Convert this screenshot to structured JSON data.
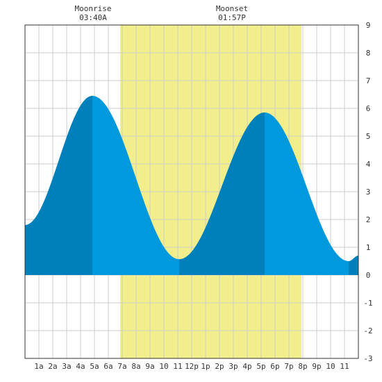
{
  "chart_data": {
    "type": "area",
    "title": "",
    "xlabel": "",
    "ylabel": "",
    "x_range_hours": [
      0,
      24
    ],
    "ylim": [
      -3,
      9
    ],
    "y_ticks": [
      9,
      8,
      7,
      6,
      5,
      4,
      3,
      2,
      1,
      0,
      -1,
      -2,
      -3
    ],
    "x_ticks": [
      {
        "hour": 1,
        "label": "1a"
      },
      {
        "hour": 2,
        "label": "2a"
      },
      {
        "hour": 3,
        "label": "3a"
      },
      {
        "hour": 4,
        "label": "4a"
      },
      {
        "hour": 5,
        "label": "5a"
      },
      {
        "hour": 6,
        "label": "6a"
      },
      {
        "hour": 7,
        "label": "7a"
      },
      {
        "hour": 8,
        "label": "8a"
      },
      {
        "hour": 9,
        "label": "9a"
      },
      {
        "hour": 10,
        "label": "10"
      },
      {
        "hour": 11,
        "label": "11"
      },
      {
        "hour": 12,
        "label": "12p"
      },
      {
        "hour": 13,
        "label": "1p"
      },
      {
        "hour": 14,
        "label": "2p"
      },
      {
        "hour": 15,
        "label": "3p"
      },
      {
        "hour": 16,
        "label": "4p"
      },
      {
        "hour": 17,
        "label": "5p"
      },
      {
        "hour": 18,
        "label": "6p"
      },
      {
        "hour": 19,
        "label": "7p"
      },
      {
        "hour": 20,
        "label": "8p"
      },
      {
        "hour": 21,
        "label": "9p"
      },
      {
        "hour": 22,
        "label": "10"
      },
      {
        "hour": 23,
        "label": "11"
      }
    ],
    "daylight": {
      "start_hour": 6.85,
      "end_hour": 19.9
    },
    "moon_events": [
      {
        "title": "Moonrise",
        "time": "03:40A",
        "hour": 4.9
      },
      {
        "title": "Moonset",
        "time": "01:57P",
        "hour": 14.9
      }
    ],
    "tide_extremes": [
      {
        "hour": 0.0,
        "height": 1.8
      },
      {
        "hour": 4.85,
        "height": 6.45
      },
      {
        "hour": 11.1,
        "height": 0.57
      },
      {
        "hour": 17.25,
        "height": 5.85
      },
      {
        "hour": 23.3,
        "height": 0.5
      },
      {
        "hour": 24.0,
        "height": 0.7
      }
    ],
    "shade_breaks": [
      4.85,
      11.1,
      17.25,
      23.3
    ],
    "colors": {
      "tide_light": "#0099dd",
      "tide_dark": "#0080bb",
      "daylight": "#f3ee8c",
      "grid": "#cccccc",
      "frame": "#333333",
      "background": "#ffffff"
    },
    "grid": true
  }
}
